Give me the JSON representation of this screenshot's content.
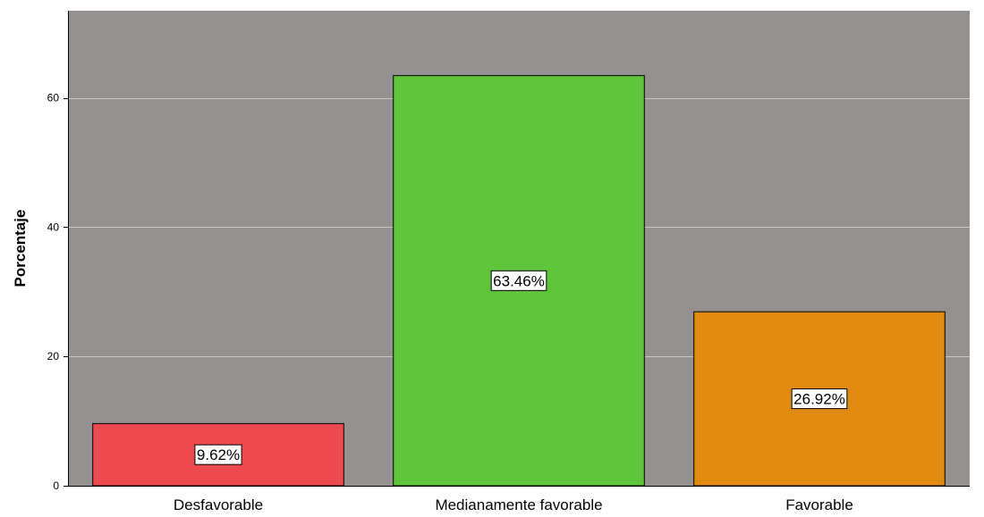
{
  "chart_data": {
    "type": "bar",
    "title": "",
    "xlabel": "",
    "ylabel": "Porcentaje",
    "categories": [
      "Desfavorable",
      "Medianamente favorable",
      "Favorable"
    ],
    "values": [
      9.62,
      63.46,
      26.92
    ],
    "data_labels": [
      "9.62%",
      "63.46%",
      "26.92%"
    ],
    "bar_colors": [
      "#ec4a4e",
      "#5ec43a",
      "#e08b10"
    ],
    "ylim": [
      0,
      73.5
    ],
    "yticks": [
      0,
      20,
      40,
      60
    ],
    "grid": true,
    "legend": "none",
    "colors": {
      "plot_background": "#959190",
      "gridline": "#c9c6c4",
      "bar_outline": "#000000",
      "label_box_fill": "#ffffff"
    }
  }
}
